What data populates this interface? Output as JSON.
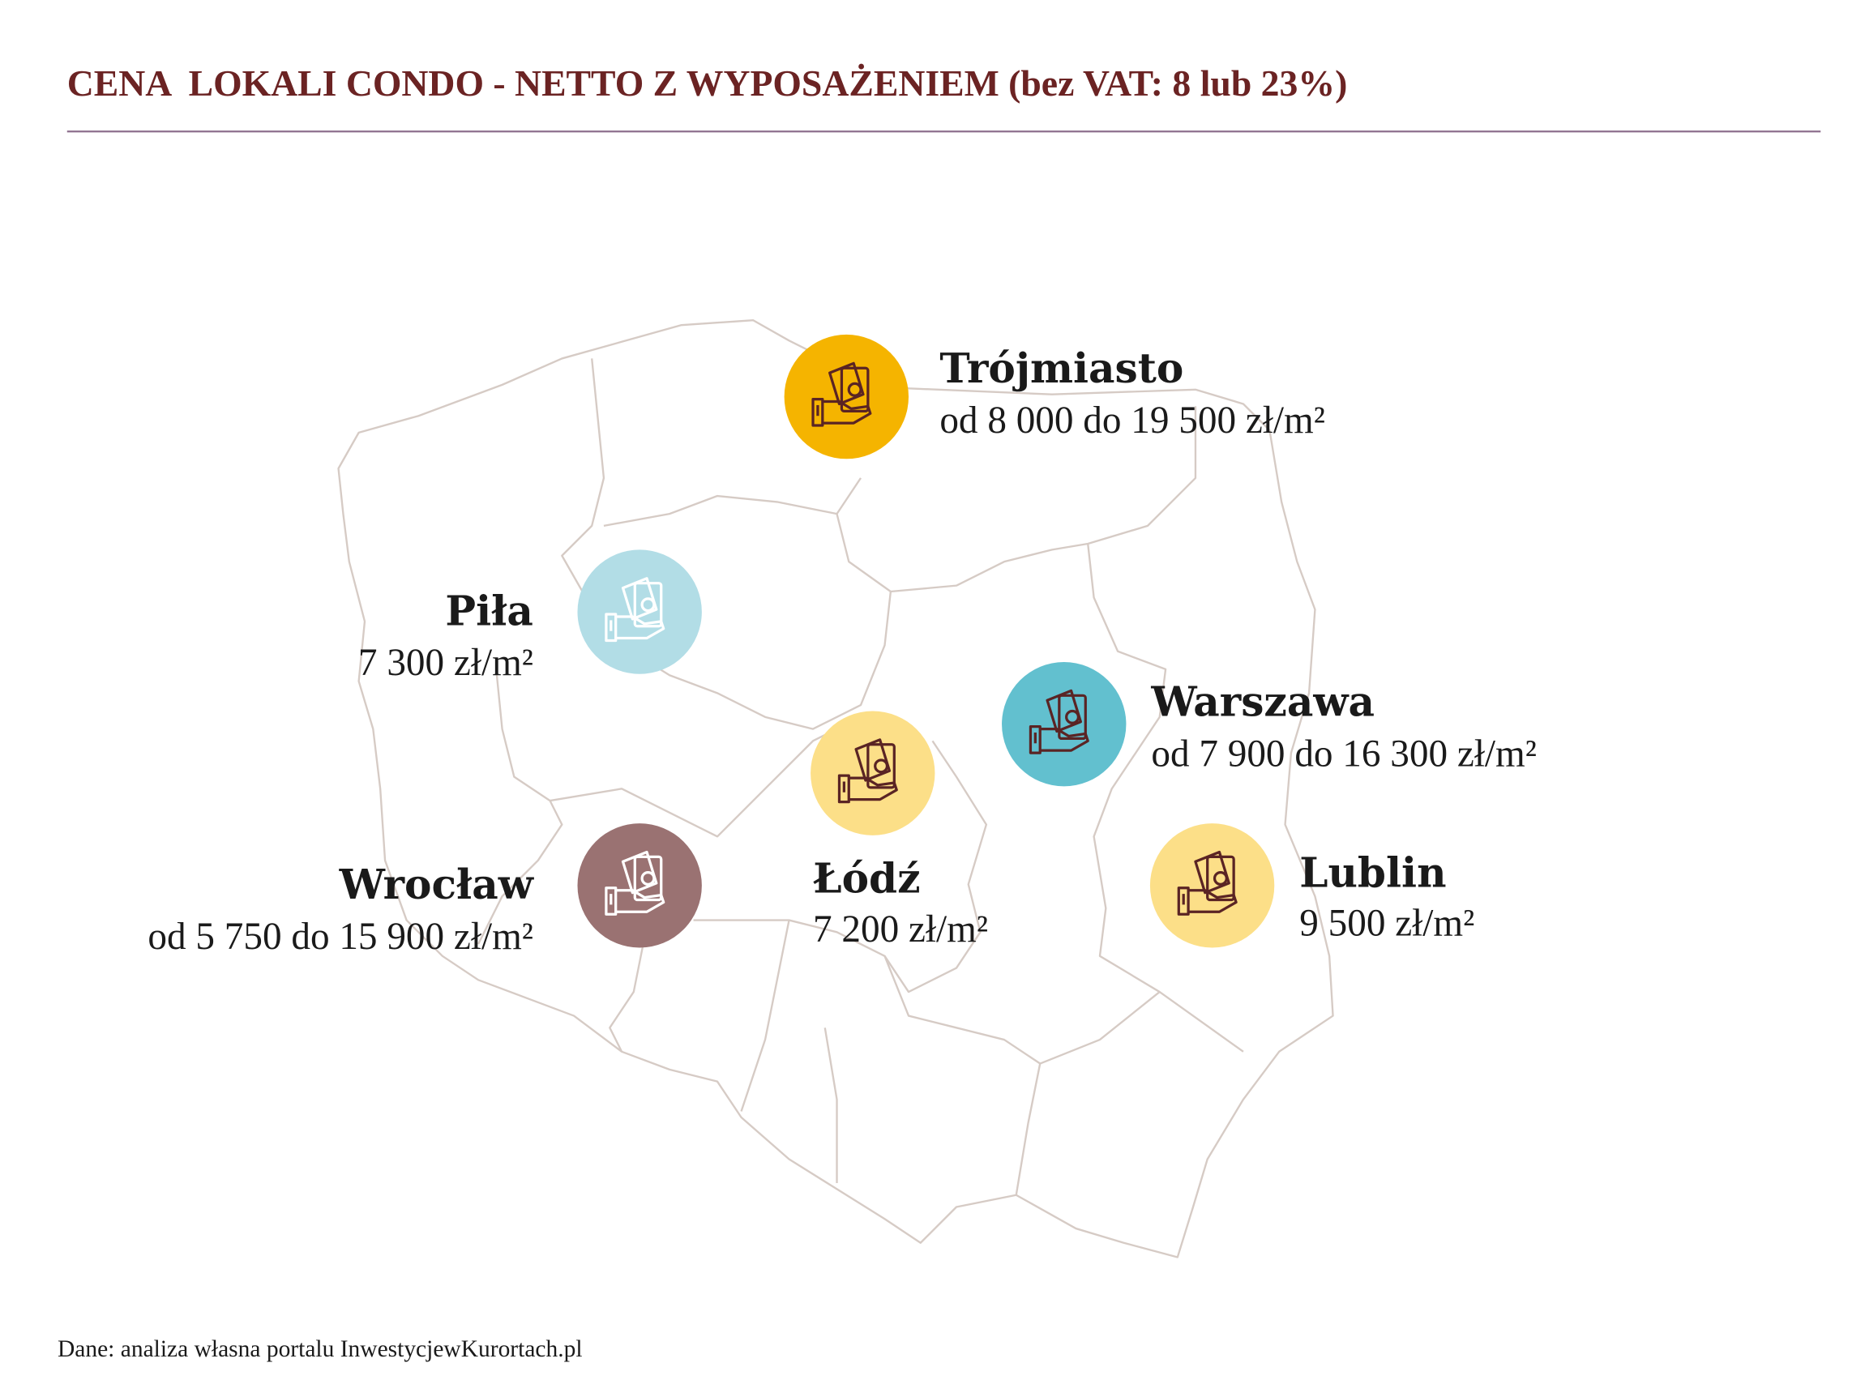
{
  "header": {
    "title": "CENA  LOKALI CONDO - NETTO Z WYPOSAŻENIEM (bez VAT: 8 lub 23%)"
  },
  "cities": [
    {
      "name": "Trójmiasto",
      "price": "od 8 000 do 19 500 zł/m²",
      "color": "#f5b400",
      "icon_color": "#5a2424"
    },
    {
      "name": "Piła",
      "price": "7 300 zł/m²",
      "color": "#b2dde6",
      "icon_color": "#ffffff"
    },
    {
      "name": "Warszawa",
      "price": "od 7 900 do 16 300 zł/m²",
      "color": "#62c0cf",
      "icon_color": "#5a2424"
    },
    {
      "name": "Łódź",
      "price": "7 200 zł/m²",
      "color": "#fcdf88",
      "icon_color": "#5a2424"
    },
    {
      "name": "Wrocław",
      "price": "od 5 750 do 15 900 zł/m²",
      "color": "#9a7272",
      "icon_color": "#ffffff"
    },
    {
      "name": "Lublin",
      "price": "9 500 zł/m²",
      "color": "#fcdf88",
      "icon_color": "#5a2424"
    }
  ],
  "footer": {
    "source": "Dane: analiza własna portalu InwestycjewKurortach.pl"
  }
}
